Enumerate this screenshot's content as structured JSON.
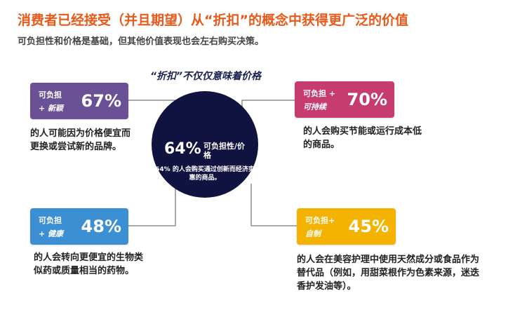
{
  "header": {
    "title": "消费者已经接受（并且期望）从“折扣”的概念中获得更广泛的价值",
    "subtitle": "可负担性和价格是基础，但其他价值表现也会左右购买决策。"
  },
  "center": {
    "heading": "“折扣”不仅仅意味着价格",
    "percent": "64%",
    "label": "可负担性/价格",
    "description": "64% 的人会购买通过创新而经济实惠的商品。"
  },
  "cards": {
    "top_left": {
      "line1": "可负担",
      "line2": "+ 新颖",
      "percent": "67%",
      "text": "的人可能因为价格便宜而更换或尝试新的品牌。",
      "color": "#6a5196"
    },
    "top_right": {
      "line1": "可负担 +",
      "line2": "可持续",
      "percent": "70%",
      "text": "的人会购买节能或运行成本低的商品。",
      "color": "#c63c6f"
    },
    "bottom_left": {
      "line1": "可负担",
      "line2": "+ 健康",
      "percent": "48%",
      "text": "的人会转向更便宜的生物类似药或质量相当的药物。",
      "color": "#3d8fd4"
    },
    "bottom_right": {
      "line1": "可负担+",
      "line2": "自制",
      "percent": "45%",
      "text": "的人会在美容护理中使用天然成分或食品作为替代品（例如，用甜菜根作为色素来源，迷迭香护发油等）。",
      "color": "#f4b300"
    }
  }
}
